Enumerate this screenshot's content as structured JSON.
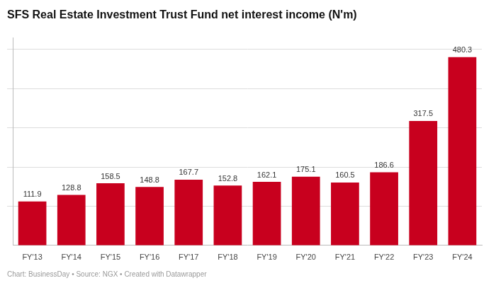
{
  "chart_data": {
    "type": "bar",
    "title": "SFS Real Estate Investment Trust Fund net interest income (N'm)",
    "caption": "Chart: BusinessDay • Source: NGX • Created with Datawrapper",
    "categories": [
      "FY'13",
      "FY'14",
      "FY'15",
      "FY'16",
      "FY'17",
      "FY'18",
      "FY'19",
      "FY'20",
      "FY'21",
      "FY'22",
      "FY'23",
      "FY'24"
    ],
    "values": [
      111.9,
      128.8,
      158.5,
      148.8,
      167.7,
      152.8,
      162.1,
      175.1,
      160.5,
      186.6,
      317.5,
      480.3
    ],
    "color": "#c8001e",
    "ylim": [
      0,
      530
    ],
    "yticks": [
      100,
      200,
      300,
      400,
      500
    ],
    "grid": true,
    "data_labels": true,
    "tick_labels": "x"
  }
}
